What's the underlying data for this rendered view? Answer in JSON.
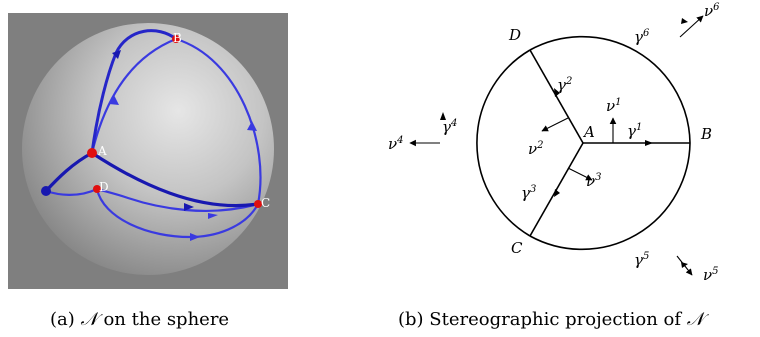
{
  "panel_a": {
    "points": {
      "A": "A",
      "B": "B",
      "C": "C",
      "D": "D"
    }
  },
  "panel_b": {
    "points": {
      "A": "A",
      "B": "B",
      "C": "C",
      "D": "D"
    },
    "curves": {
      "g1": "γ",
      "g1_sup": "1",
      "g2": "γ",
      "g2_sup": "2",
      "g3": "γ",
      "g3_sup": "3",
      "g4": "γ",
      "g4_sup": "4",
      "g5": "γ",
      "g5_sup": "5",
      "g6": "γ",
      "g6_sup": "6"
    },
    "normals": {
      "n1": "ν",
      "n1_sup": "1",
      "n2": "ν",
      "n2_sup": "2",
      "n3": "ν",
      "n3_sup": "3",
      "n4": "ν",
      "n4_sup": "4",
      "n5": "ν",
      "n5_sup": "5",
      "n6": "ν",
      "n6_sup": "6"
    }
  },
  "captions": {
    "a_prefix": "(a) ",
    "a_symbol": "𝒩",
    "a_suffix": " on the sphere",
    "b_prefix": "(b) Stereographic projection of ",
    "b_symbol": "𝒩"
  },
  "colors": {
    "background": "#7f7f7f",
    "curve": "#3a3ae0",
    "curve_dark": "#1818b0",
    "point": "#e01010"
  }
}
